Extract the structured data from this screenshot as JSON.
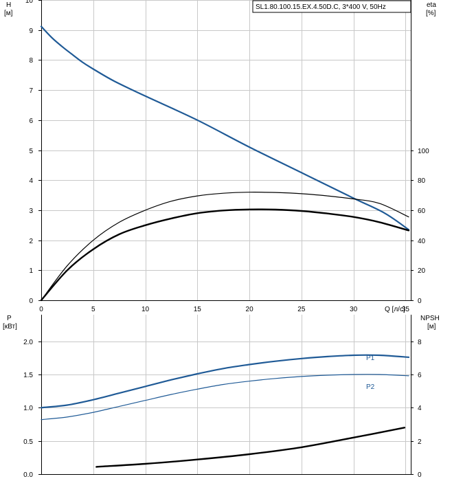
{
  "chart_data": [
    {
      "type": "line",
      "title": "SL1.80.100.15.EX.4.50D.C, 3*400 V, 50Hz",
      "xlabel": "Q [л/с]",
      "xlim": [
        0,
        35.5
      ],
      "x_ticks": [
        0,
        5,
        10,
        15,
        20,
        25,
        30,
        35
      ],
      "ylabel_left": [
        "H",
        "[м]"
      ],
      "ylim_left": [
        0,
        10
      ],
      "y_ticks_left": [
        0,
        1,
        2,
        3,
        4,
        5,
        6,
        7,
        8,
        9,
        10
      ],
      "ylabel_right": [
        "eta",
        "[%]"
      ],
      "ylim_right": [
        0,
        200
      ],
      "y_ticks_right": [
        0,
        20,
        40,
        60,
        80,
        100
      ],
      "grid": true,
      "series": [
        {
          "axis": "left",
          "color": "#1f5a96",
          "width": 2.2,
          "x": [
            0,
            1,
            2,
            3,
            4,
            5,
            7,
            10,
            15,
            20,
            25,
            30,
            33,
            35.3
          ],
          "y": [
            9.12,
            8.75,
            8.45,
            8.18,
            7.92,
            7.7,
            7.3,
            6.8,
            6.0,
            5.1,
            4.25,
            3.4,
            2.9,
            2.35
          ]
        },
        {
          "axis": "right",
          "color": "#000000",
          "width": 1.2,
          "x": [
            0,
            2.5,
            5,
            7.5,
            10,
            12.5,
            15,
            17.5,
            20,
            22.5,
            25,
            27.5,
            30,
            32.5,
            35.3
          ],
          "y": [
            0,
            23,
            40,
            52,
            60,
            66,
            69.5,
            71.3,
            72,
            71.8,
            71,
            69.5,
            67.5,
            64.5,
            55.5
          ]
        },
        {
          "axis": "right",
          "color": "#000000",
          "width": 2.4,
          "x": [
            0,
            2.5,
            5,
            7.5,
            10,
            12.5,
            15,
            17.5,
            20,
            22.5,
            25,
            27.5,
            30,
            32.5,
            35.3
          ],
          "y": [
            0,
            20,
            34,
            44,
            50,
            54.5,
            58,
            59.8,
            60.5,
            60.4,
            59.5,
            57.8,
            55.5,
            52,
            46.5
          ]
        }
      ]
    },
    {
      "type": "line",
      "xlim": [
        0,
        35.5
      ],
      "x_ticks": [
        0,
        5,
        10,
        15,
        20,
        25,
        30,
        35
      ],
      "ylabel_left": [
        "P",
        "[кВт]"
      ],
      "ylim_left": [
        0,
        2.4
      ],
      "y_ticks_left": [
        "0.0",
        "0.5",
        "1.0",
        "1.5",
        "2.0"
      ],
      "ylabel_right": [
        "NPSH",
        "[м]"
      ],
      "ylim_right": [
        0,
        9.6
      ],
      "y_ticks_right": [
        0,
        2,
        4,
        6,
        8
      ],
      "grid": true,
      "series": [
        {
          "name": "P1",
          "axis": "left",
          "color": "#1f5a96",
          "width": 2.2,
          "x": [
            0,
            2.5,
            5,
            7.5,
            10,
            12.5,
            15,
            17.5,
            20,
            22.5,
            25,
            27.5,
            30,
            32.5,
            35.3
          ],
          "y": [
            1.0,
            1.04,
            1.12,
            1.22,
            1.32,
            1.42,
            1.51,
            1.59,
            1.65,
            1.7,
            1.74,
            1.77,
            1.79,
            1.79,
            1.76
          ]
        },
        {
          "name": "P2",
          "axis": "left",
          "color": "#1f5a96",
          "width": 1.2,
          "x": [
            0,
            2.5,
            5,
            7.5,
            10,
            12.5,
            15,
            17.5,
            20,
            22.5,
            25,
            27.5,
            30,
            32.5,
            35.3
          ],
          "y": [
            0.82,
            0.86,
            0.93,
            1.02,
            1.11,
            1.2,
            1.28,
            1.35,
            1.4,
            1.44,
            1.47,
            1.49,
            1.5,
            1.5,
            1.48
          ]
        },
        {
          "axis": "right",
          "color": "#000000",
          "width": 2.4,
          "x": [
            5.3,
            10,
            15,
            20,
            25,
            30,
            34.9
          ],
          "y": [
            0.44,
            0.62,
            0.88,
            1.2,
            1.62,
            2.2,
            2.8
          ]
        }
      ]
    }
  ]
}
